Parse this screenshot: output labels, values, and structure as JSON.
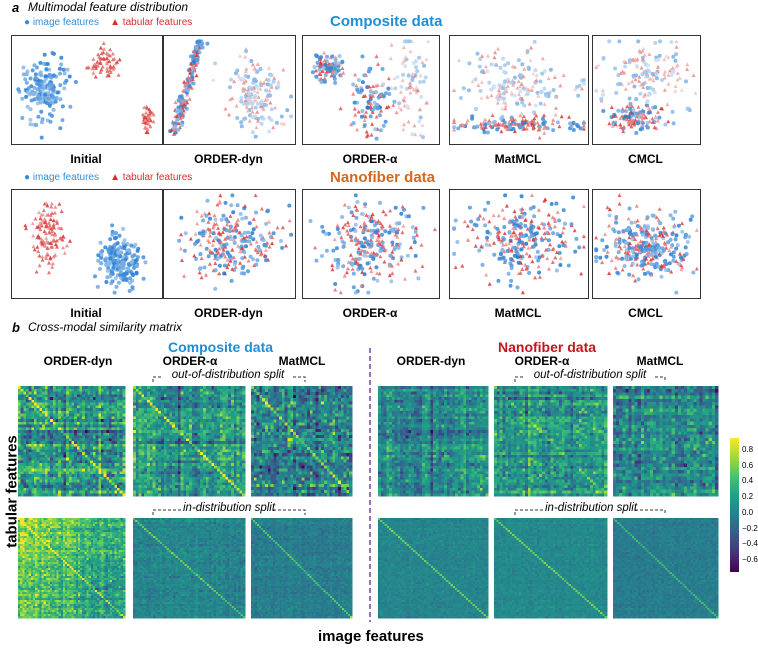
{
  "panel_a": {
    "letter": "a",
    "title": "Multimodal feature distribution",
    "legend": {
      "image": "image features",
      "tabular": "tabular features",
      "image_color": "#2f8fdc",
      "tabular_color": "#e02a2a"
    },
    "rows": [
      {
        "dataset": "Composite data",
        "color": "#1e8fd6",
        "methods": [
          "Initial",
          "ORDER-dyn",
          "ORDER-α",
          "MatMCL",
          "CMCL"
        ]
      },
      {
        "dataset": "Nanofiber data",
        "color": "#d2691e",
        "methods": [
          "Initial",
          "ORDER-dyn",
          "ORDER-α",
          "MatMCL",
          "CMCL"
        ]
      }
    ]
  },
  "panel_b": {
    "letter": "b",
    "title": "Cross-modal similarity matrix",
    "left": {
      "dataset": "Composite data",
      "color": "#1e8fd6",
      "methods": [
        "ORDER-dyn",
        "ORDER-α",
        "MatMCL"
      ]
    },
    "right": {
      "dataset": "Nanofiber data",
      "color": "#c0161c",
      "methods": [
        "ORDER-dyn",
        "ORDER-α",
        "MatMCL"
      ]
    },
    "ood_label": "out-of-distribution split",
    "id_label": "in-distribution split",
    "ylabel": "tabular features",
    "xlabel": "image features",
    "colorbar_ticks": [
      "0.8",
      "0.6",
      "0.4",
      "0.2",
      "0.0",
      "−0.2",
      "−0.4",
      "−0.6"
    ],
    "colorbar_range": [
      -0.75,
      0.95
    ]
  }
}
